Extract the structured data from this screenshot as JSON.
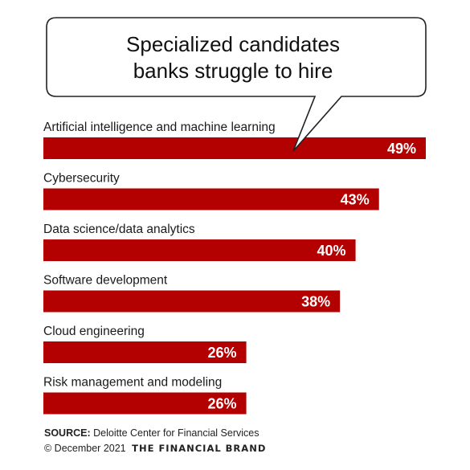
{
  "chart_data": {
    "type": "bar",
    "orientation": "horizontal",
    "title": "Specialized candidates banks struggle to hire",
    "title_lines": [
      "Specialized candidates",
      "banks struggle to hire"
    ],
    "categories": [
      "Artificial intelligence and machine learning",
      "Cybersecurity",
      "Data science/data analytics",
      "Software development",
      "Cloud engineering",
      "Risk management and modeling"
    ],
    "values": [
      49,
      43,
      40,
      38,
      26,
      26
    ],
    "value_labels": [
      "49%",
      "43%",
      "40%",
      "38%",
      "26%",
      "26%"
    ],
    "xlim": [
      0,
      49
    ],
    "grid": false,
    "bar_color": "#b30000"
  },
  "footer": {
    "source_label": "SOURCE:",
    "source_text": "Deloitte Center for Financial Services",
    "copyright": "© December 2021",
    "brand": "THE FINANCIAL BRAND"
  }
}
